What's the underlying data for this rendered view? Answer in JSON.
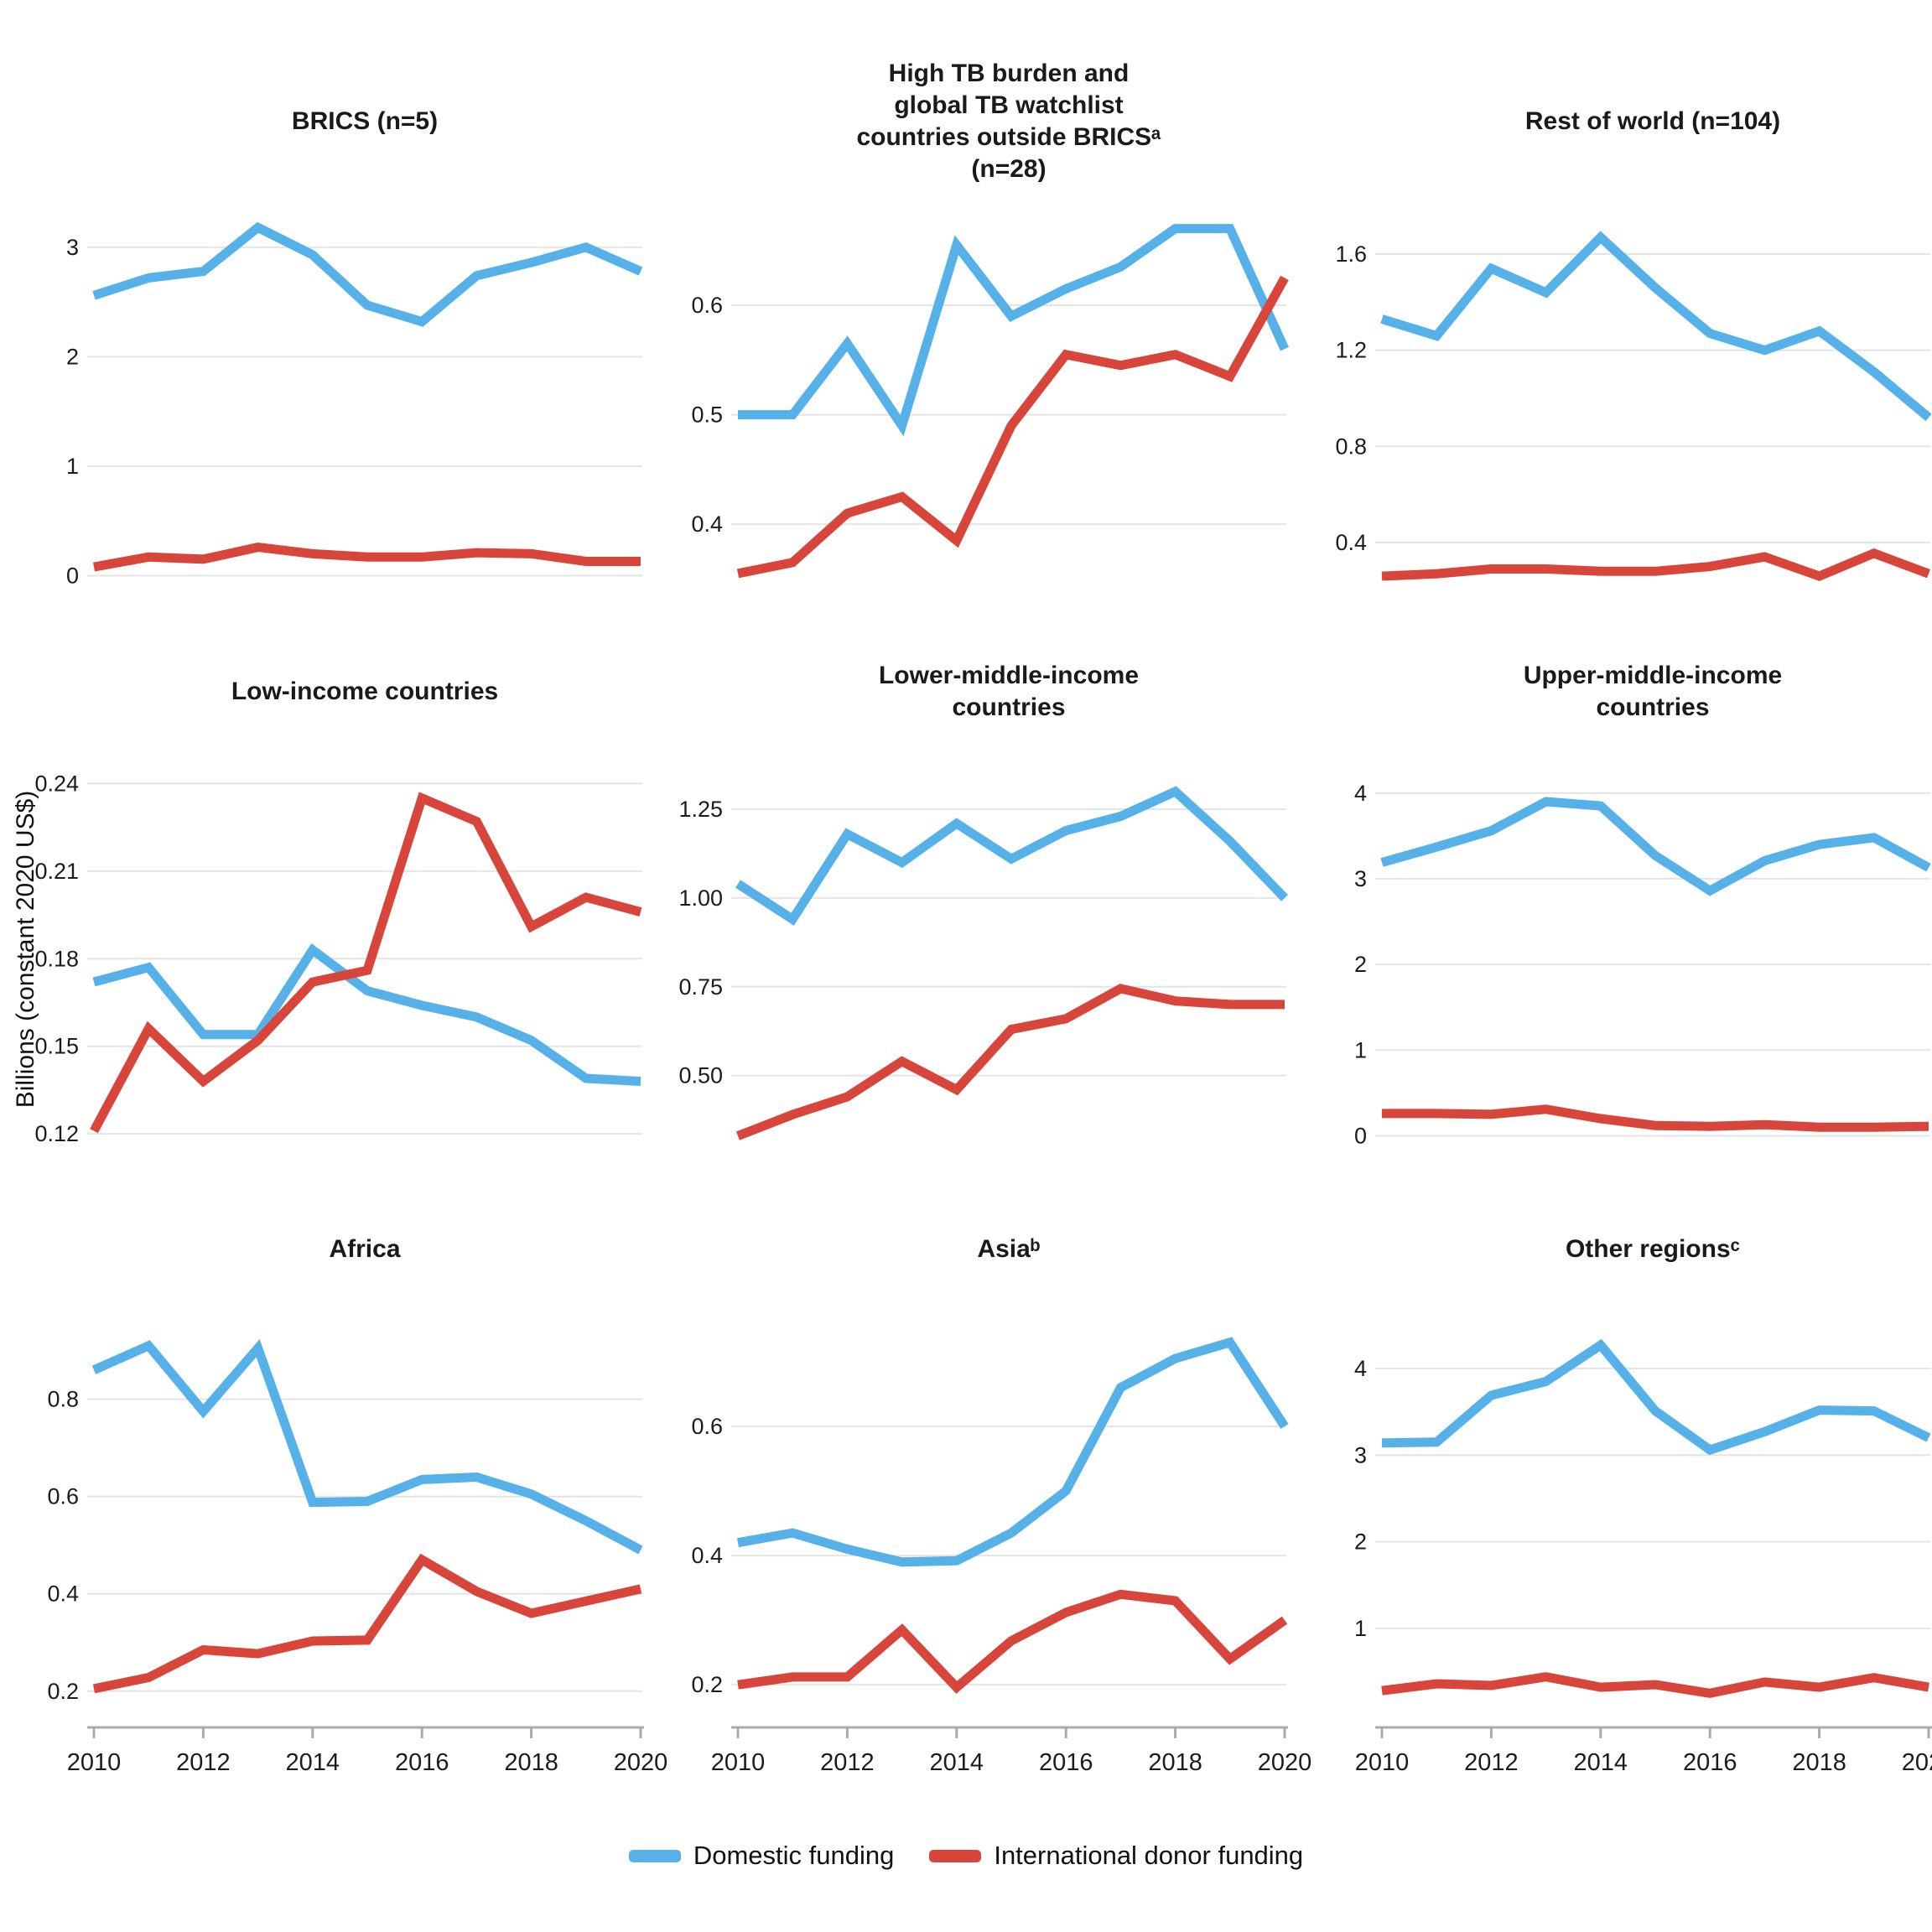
{
  "style": {
    "domestic_color": "#56B1E8",
    "donor_color": "#D7453B",
    "grid_color": "#E4E4E4",
    "axis_color": "#ABABAB",
    "tick_text_color": "#1C1C1C",
    "title_color": "#1A1A1A",
    "line_width": 11
  },
  "ylabel": "Billions (constant 2020 US$)",
  "legend": {
    "items": [
      {
        "label": "Domestic funding",
        "color": "#56B1E8"
      },
      {
        "label": "International donor funding",
        "color": "#D7453B"
      }
    ]
  },
  "x_axis": {
    "range": [
      2010,
      2020
    ],
    "tick_values": [
      2010,
      2012,
      2014,
      2016,
      2018,
      2020
    ],
    "tick_labels": [
      "2010",
      "2012",
      "2014",
      "2016",
      "2018",
      "2020"
    ]
  },
  "chart_data": [
    {
      "type": "line",
      "title": "BRICS (n=5)",
      "x": [
        2010,
        2011,
        2012,
        2013,
        2014,
        2015,
        2016,
        2017,
        2018,
        2019,
        2020
      ],
      "ylim": [
        -0.18,
        3.42
      ],
      "yticks": [
        {
          "value": 0,
          "label": "0"
        },
        {
          "value": 1,
          "label": "1"
        },
        {
          "value": 2,
          "label": "2"
        },
        {
          "value": 3,
          "label": "3"
        }
      ],
      "show_x_axis": false,
      "series": [
        {
          "name": "Domestic funding",
          "color": "#56B1E8",
          "values": [
            2.56,
            2.72,
            2.78,
            3.18,
            2.93,
            2.47,
            2.32,
            2.74,
            2.86,
            3.0,
            2.78
          ]
        },
        {
          "name": "International donor funding",
          "color": "#D7453B",
          "values": [
            0.08,
            0.17,
            0.15,
            0.26,
            0.2,
            0.17,
            0.17,
            0.21,
            0.2,
            0.13,
            0.13
          ]
        }
      ]
    },
    {
      "type": "line",
      "title": "High TB burden and\nglobal TB watchlist\ncountries outside BRICSᵃ\n(n=28)",
      "x": [
        2010,
        2011,
        2012,
        2013,
        2014,
        2015,
        2016,
        2017,
        2018,
        2019,
        2020
      ],
      "ylim": [
        0.335,
        0.695
      ],
      "yticks": [
        {
          "value": 0.4,
          "label": "0.4"
        },
        {
          "value": 0.5,
          "label": "0.5"
        },
        {
          "value": 0.6,
          "label": "0.6"
        }
      ],
      "show_x_axis": false,
      "series": [
        {
          "name": "Domestic funding",
          "color": "#56B1E8",
          "values": [
            0.5,
            0.5,
            0.565,
            0.49,
            0.655,
            0.59,
            0.615,
            0.635,
            0.67,
            0.67,
            0.56
          ]
        },
        {
          "name": "International donor funding",
          "color": "#D7453B",
          "values": [
            0.355,
            0.365,
            0.41,
            0.425,
            0.385,
            0.49,
            0.555,
            0.545,
            0.555,
            0.535,
            0.625
          ]
        }
      ]
    },
    {
      "type": "line",
      "title": "Rest of world (n=104)",
      "x": [
        2010,
        2011,
        2012,
        2013,
        2014,
        2015,
        2016,
        2017,
        2018,
        2019,
        2020
      ],
      "ylim": [
        0.18,
        1.82
      ],
      "yticks": [
        {
          "value": 0.4,
          "label": "0.4"
        },
        {
          "value": 0.8,
          "label": "0.8"
        },
        {
          "value": 1.2,
          "label": "1.2"
        },
        {
          "value": 1.6,
          "label": "1.6"
        }
      ],
      "show_x_axis": false,
      "series": [
        {
          "name": "Domestic funding",
          "color": "#56B1E8",
          "values": [
            1.33,
            1.26,
            1.54,
            1.44,
            1.67,
            1.46,
            1.27,
            1.2,
            1.28,
            1.11,
            0.92
          ]
        },
        {
          "name": "International donor funding",
          "color": "#D7453B",
          "values": [
            0.26,
            0.27,
            0.29,
            0.29,
            0.28,
            0.28,
            0.3,
            0.34,
            0.26,
            0.355,
            0.27
          ]
        }
      ]
    },
    {
      "type": "line",
      "title": "Low-income countries",
      "x": [
        2010,
        2011,
        2012,
        2013,
        2014,
        2015,
        2016,
        2017,
        2018,
        2019,
        2020
      ],
      "ylim": [
        0.112,
        0.247
      ],
      "yticks": [
        {
          "value": 0.12,
          "label": "0.12"
        },
        {
          "value": 0.15,
          "label": "0.15"
        },
        {
          "value": 0.18,
          "label": "0.18"
        },
        {
          "value": 0.21,
          "label": "0.21"
        },
        {
          "value": 0.24,
          "label": "0.24"
        }
      ],
      "show_x_axis": false,
      "series": [
        {
          "name": "Domestic funding",
          "color": "#56B1E8",
          "values": [
            0.172,
            0.177,
            0.154,
            0.154,
            0.183,
            0.169,
            0.164,
            0.16,
            0.152,
            0.139,
            0.138
          ]
        },
        {
          "name": "International donor funding",
          "color": "#D7453B",
          "values": [
            0.121,
            0.156,
            0.138,
            0.152,
            0.172,
            0.176,
            0.235,
            0.227,
            0.191,
            0.201,
            0.196
          ]
        }
      ]
    },
    {
      "type": "line",
      "title": "Lower-middle-income\ncountries",
      "x": [
        2010,
        2011,
        2012,
        2013,
        2014,
        2015,
        2016,
        2017,
        2018,
        2019,
        2020
      ],
      "ylim": [
        0.27,
        1.38
      ],
      "yticks": [
        {
          "value": 0.5,
          "label": "0.50"
        },
        {
          "value": 0.75,
          "label": "0.75"
        },
        {
          "value": 1.0,
          "label": "1.00"
        },
        {
          "value": 1.25,
          "label": "1.25"
        }
      ],
      "show_x_axis": false,
      "series": [
        {
          "name": "Domestic funding",
          "color": "#56B1E8",
          "values": [
            1.04,
            0.94,
            1.18,
            1.1,
            1.21,
            1.11,
            1.19,
            1.23,
            1.3,
            1.16,
            1.0
          ]
        },
        {
          "name": "International donor funding",
          "color": "#D7453B",
          "values": [
            0.33,
            0.39,
            0.44,
            0.54,
            0.46,
            0.63,
            0.66,
            0.745,
            0.71,
            0.7,
            0.7
          ]
        }
      ]
    },
    {
      "type": "line",
      "title": "Upper-middle-income\ncountries",
      "x": [
        2010,
        2011,
        2012,
        2013,
        2014,
        2015,
        2016,
        2017,
        2018,
        2019,
        2020
      ],
      "ylim": [
        -0.25,
        4.35
      ],
      "yticks": [
        {
          "value": 0,
          "label": "0"
        },
        {
          "value": 1,
          "label": "1"
        },
        {
          "value": 2,
          "label": "2"
        },
        {
          "value": 3,
          "label": "3"
        },
        {
          "value": 4,
          "label": "4"
        }
      ],
      "show_x_axis": false,
      "series": [
        {
          "name": "Domestic funding",
          "color": "#56B1E8",
          "values": [
            3.19,
            3.37,
            3.56,
            3.9,
            3.85,
            3.27,
            2.86,
            3.21,
            3.4,
            3.48,
            3.13
          ]
        },
        {
          "name": "International donor funding",
          "color": "#D7453B",
          "values": [
            0.26,
            0.26,
            0.25,
            0.31,
            0.2,
            0.12,
            0.11,
            0.13,
            0.1,
            0.1,
            0.11
          ]
        }
      ]
    },
    {
      "type": "line",
      "title": "Africa",
      "x": [
        2010,
        2011,
        2012,
        2013,
        2014,
        2015,
        2016,
        2017,
        2018,
        2019,
        2020
      ],
      "ylim": [
        0.16,
        0.97
      ],
      "yticks": [
        {
          "value": 0.2,
          "label": "0.2"
        },
        {
          "value": 0.4,
          "label": "0.4"
        },
        {
          "value": 0.6,
          "label": "0.6"
        },
        {
          "value": 0.8,
          "label": "0.8"
        }
      ],
      "show_x_axis": true,
      "series": [
        {
          "name": "Domestic funding",
          "color": "#56B1E8",
          "values": [
            0.86,
            0.91,
            0.775,
            0.905,
            0.588,
            0.59,
            0.635,
            0.64,
            0.605,
            0.55,
            0.49
          ]
        },
        {
          "name": "International donor funding",
          "color": "#D7453B",
          "values": [
            0.205,
            0.228,
            0.285,
            0.277,
            0.303,
            0.305,
            0.47,
            0.405,
            0.36,
            0.385,
            0.41
          ]
        }
      ]
    },
    {
      "type": "line",
      "title": "Asiaᵇ",
      "x": [
        2010,
        2011,
        2012,
        2013,
        2014,
        2015,
        2016,
        2017,
        2018,
        2019,
        2020
      ],
      "ylim": [
        0.16,
        0.77
      ],
      "yticks": [
        {
          "value": 0.2,
          "label": "0.2"
        },
        {
          "value": 0.4,
          "label": "0.4"
        },
        {
          "value": 0.6,
          "label": "0.6"
        }
      ],
      "show_x_axis": true,
      "series": [
        {
          "name": "Domestic funding",
          "color": "#56B1E8",
          "values": [
            0.42,
            0.435,
            0.41,
            0.39,
            0.392,
            0.435,
            0.5,
            0.66,
            0.705,
            0.73,
            0.6
          ]
        },
        {
          "name": "International donor funding",
          "color": "#D7453B",
          "values": [
            0.2,
            0.212,
            0.212,
            0.285,
            0.196,
            0.268,
            0.312,
            0.34,
            0.33,
            0.24,
            0.3
          ]
        }
      ]
    },
    {
      "type": "line",
      "title": "Other regionsᶜ",
      "x": [
        2010,
        2011,
        2012,
        2013,
        2014,
        2015,
        2016,
        2017,
        2018,
        2019,
        2020
      ],
      "ylim": [
        0.05,
        4.6
      ],
      "yticks": [
        {
          "value": 1,
          "label": "1"
        },
        {
          "value": 2,
          "label": "2"
        },
        {
          "value": 3,
          "label": "3"
        },
        {
          "value": 4,
          "label": "4"
        }
      ],
      "show_x_axis": true,
      "series": [
        {
          "name": "Domestic funding",
          "color": "#56B1E8",
          "values": [
            3.14,
            3.15,
            3.69,
            3.85,
            4.27,
            3.51,
            3.06,
            3.27,
            3.52,
            3.51,
            3.2
          ]
        },
        {
          "name": "International donor funding",
          "color": "#D7453B",
          "values": [
            0.28,
            0.36,
            0.34,
            0.44,
            0.32,
            0.35,
            0.25,
            0.38,
            0.32,
            0.43,
            0.32
          ]
        }
      ]
    }
  ]
}
